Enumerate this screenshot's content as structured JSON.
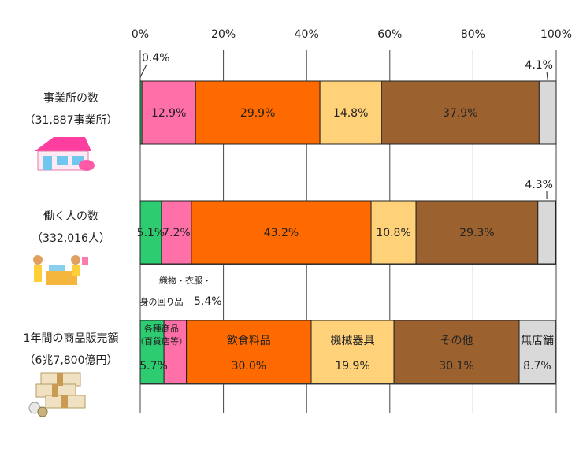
{
  "chart_data": {
    "type": "bar",
    "orientation": "horizontal-stacked-100",
    "xlim": [
      0,
      100
    ],
    "x_ticks": [
      "0%",
      "20%",
      "40%",
      "60%",
      "80%",
      "100%"
    ],
    "grid": true,
    "rows": [
      {
        "label": "事業所の数",
        "sublabel": "（31,887事業所）",
        "icon": "shop-building-icon",
        "segments": [
          {
            "value": 0.4,
            "color": "#2ecc71",
            "label": "",
            "pct": "0.4%"
          },
          {
            "value": 12.9,
            "color": "#ff6fa8",
            "label": "",
            "pct": "12.9%"
          },
          {
            "value": 29.9,
            "color": "#ff6a00",
            "label": "",
            "pct": "29.9%"
          },
          {
            "value": 14.8,
            "color": "#ffd27a",
            "label": "",
            "pct": "14.8%"
          },
          {
            "value": 37.9,
            "color": "#9b6230",
            "label": "",
            "pct": "37.9%"
          },
          {
            "value": 4.1,
            "color": "#d9d9d9",
            "label": "",
            "pct": "4.1%"
          }
        ]
      },
      {
        "label": "働く人の数",
        "sublabel": "（332,016人）",
        "icon": "shop-workers-icon",
        "segments": [
          {
            "value": 5.1,
            "color": "#2ecc71",
            "label": "",
            "pct": "5.1%"
          },
          {
            "value": 7.2,
            "color": "#ff6fa8",
            "label": "",
            "pct": "7.2%"
          },
          {
            "value": 43.2,
            "color": "#ff6a00",
            "label": "",
            "pct": "43.2%"
          },
          {
            "value": 10.8,
            "color": "#ffd27a",
            "label": "",
            "pct": "10.8%"
          },
          {
            "value": 29.3,
            "color": "#9b6230",
            "label": "",
            "pct": "29.3%"
          },
          {
            "value": 4.3,
            "color": "#d9d9d9",
            "label": "",
            "pct": "4.3%"
          }
        ]
      },
      {
        "label": "1年間の商品販売額",
        "sublabel": "（6兆7,800億円）",
        "icon": "money-bundles-icon",
        "segments": [
          {
            "value": 5.7,
            "color": "#2ecc71",
            "label": "各種商品\n（百貨店等）",
            "pct": "5.7%"
          },
          {
            "value": 5.4,
            "color": "#ff6fa8",
            "label": "織物・衣服・\n身の回り品",
            "pct": "5.4%"
          },
          {
            "value": 30.0,
            "color": "#ff6a00",
            "label": "飲食料品",
            "pct": "30.0%"
          },
          {
            "value": 19.9,
            "color": "#ffd27a",
            "label": "機械器具",
            "pct": "19.9%"
          },
          {
            "value": 30.1,
            "color": "#9b6230",
            "label": "その他",
            "pct": "30.1%"
          },
          {
            "value": 8.7,
            "color": "#d9d9d9",
            "label": "無店舗",
            "pct": "8.7%"
          }
        ]
      }
    ]
  }
}
